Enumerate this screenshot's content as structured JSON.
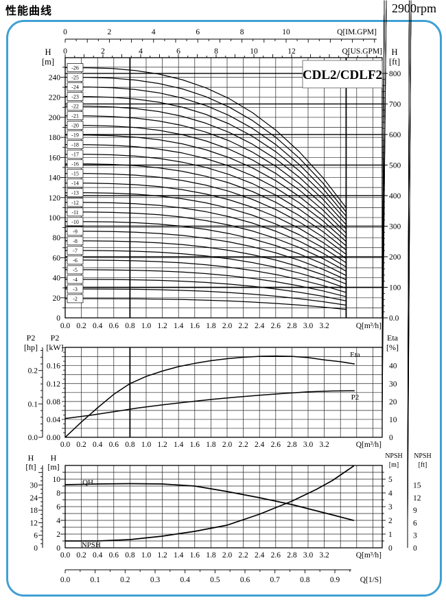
{
  "page": {
    "title": "性能曲线",
    "rpm": "2900rpm",
    "border_color": "#3fa0d4",
    "model": "CDL2/CDLF2"
  },
  "chart_data": [
    {
      "id": "main_qh_multistage",
      "type": "line",
      "title": "CDL2/CDLF2",
      "x_axis": {
        "label": "Q[m³/h]",
        "ticks": [
          "0.0",
          "0.2",
          "0.4",
          "0.6",
          "0.8",
          "1.0",
          "1.2",
          "1.4",
          "1.6",
          "1.8",
          "2.0",
          "2.2",
          "2.4",
          "2.6",
          "2.8",
          "3.0",
          "3.2"
        ]
      },
      "x_axis_im": {
        "label": "Q[IM.GPM]",
        "ticks": [
          0,
          2,
          4,
          6,
          8,
          10
        ]
      },
      "x_axis_us": {
        "label": "Q[US.GPM]",
        "ticks": [
          0,
          2,
          4,
          6,
          8,
          10,
          12
        ]
      },
      "y_left": {
        "label_lines": [
          "H",
          "[m]"
        ],
        "ticks": [
          0,
          20,
          40,
          60,
          80,
          100,
          120,
          140,
          160,
          180,
          200,
          220,
          240
        ],
        "range_m": [
          0,
          260
        ]
      },
      "y_right": {
        "label_lines": [
          "H",
          "[ft]"
        ],
        "ticks": [
          "0.0",
          "100",
          "200",
          "300",
          "400",
          "500",
          "600",
          "700",
          "800"
        ]
      },
      "stages": [
        2,
        3,
        4,
        5,
        6,
        7,
        8,
        9,
        10,
        11,
        12,
        13,
        14,
        15,
        16,
        17,
        18,
        19,
        20,
        21,
        22,
        23,
        24,
        25,
        26
      ],
      "stage_label_prefix": "-",
      "stage_curve": {
        "shutoff_head_per_stage_m": 9.6,
        "q_end_m3h": 3.47,
        "head_frac_at_end": 0.44,
        "exponent": 2.8
      },
      "bold_flow_lines_m3h": [
        0.8,
        3.47
      ]
    },
    {
      "id": "power_and_efficiency",
      "type": "line",
      "x_axis": {
        "label": "Q[m³/h]",
        "ticks": [
          "0.0",
          "0.2",
          "0.4",
          "0.6",
          "0.8",
          "1.0",
          "1.2",
          "1.4",
          "1.6",
          "1.8",
          "2.0",
          "2.2",
          "2.4",
          "2.6",
          "2.8",
          "3.0",
          "3.2"
        ]
      },
      "y_left_kw": {
        "label_lines": [
          "P2",
          "[kW]"
        ],
        "ticks": [
          "0.00",
          "0.04",
          "0.08",
          "0.12",
          "0.16"
        ]
      },
      "y_left_hp": {
        "label_lines": [
          "P2",
          "[hp]"
        ],
        "ticks": [
          "0.0",
          "0.1",
          "0.2"
        ]
      },
      "y_right_eta": {
        "label_lines": [
          "Eta",
          "[%]"
        ],
        "ticks": [
          0,
          10,
          20,
          30,
          40
        ]
      },
      "bold_flow_lines_m3h": [
        0.8
      ],
      "series": [
        {
          "name": "P2",
          "label": "P2",
          "unit": "kW",
          "label_at": [
            3.58,
            0.0905
          ],
          "points": [
            [
              0,
              0.042
            ],
            [
              0.3,
              0.049
            ],
            [
              0.6,
              0.057
            ],
            [
              0.9,
              0.0655
            ],
            [
              1.2,
              0.0725
            ],
            [
              1.5,
              0.0785
            ],
            [
              1.8,
              0.0845
            ],
            [
              2.1,
              0.0895
            ],
            [
              2.4,
              0.094
            ],
            [
              2.7,
              0.098
            ],
            [
              3.0,
              0.1015
            ],
            [
              3.3,
              0.1035
            ],
            [
              3.57,
              0.104
            ]
          ]
        },
        {
          "name": "Eta",
          "label": "Eta",
          "unit": "pct",
          "label_at": [
            3.58,
            46.4
          ],
          "points": [
            [
              0,
              0
            ],
            [
              0.2,
              8.5
            ],
            [
              0.4,
              16.5
            ],
            [
              0.6,
              24
            ],
            [
              0.8,
              30
            ],
            [
              1.0,
              34
            ],
            [
              1.2,
              37
            ],
            [
              1.4,
              39.5
            ],
            [
              1.6,
              41.3
            ],
            [
              1.8,
              42.8
            ],
            [
              2.0,
              43.9
            ],
            [
              2.2,
              44.7
            ],
            [
              2.4,
              45.2
            ],
            [
              2.6,
              45.4
            ],
            [
              2.8,
              45.2
            ],
            [
              3.0,
              44.5
            ],
            [
              3.2,
              43.2
            ],
            [
              3.4,
              42.2
            ],
            [
              3.57,
              41
            ]
          ]
        }
      ]
    },
    {
      "id": "single_stage_qh_npsh",
      "type": "line",
      "x_axis": {
        "label": "Q[m³/h]",
        "ticks": [
          "0.0",
          "0.2",
          "0.4",
          "0.6",
          "0.8",
          "1.0",
          "1.2",
          "1.4",
          "1.6",
          "1.8",
          "2.0",
          "2.2",
          "2.4",
          "2.6",
          "2.8",
          "3.0",
          "3.2"
        ]
      },
      "x_axis_ls": {
        "label": "Q[1/S]",
        "ticks": [
          "0.0",
          "0.1",
          "0.2",
          "0.3",
          "0.4",
          "0.5",
          "0.6",
          "0.7",
          "0.8",
          "0.9"
        ]
      },
      "y_left_m": {
        "label_lines": [
          "H",
          "[m]"
        ],
        "ticks": [
          0,
          2,
          4,
          6,
          8,
          10
        ]
      },
      "y_left_ft": {
        "label_lines": [
          "H",
          "[ft]"
        ],
        "ticks": [
          0,
          6,
          12,
          18,
          24,
          30
        ]
      },
      "y_right_npsh_m": {
        "label_lines": [
          "NPSH",
          "[m]"
        ],
        "ticks": [
          0,
          1,
          2,
          3,
          4,
          5
        ]
      },
      "y_right_npsh_ft": {
        "label_lines": [
          "NPSH",
          "[ft]"
        ],
        "ticks": [
          0,
          3,
          6,
          9,
          12,
          15
        ]
      },
      "series": [
        {
          "name": "QH",
          "label": "QH",
          "unit": "m",
          "label_at": [
            0.28,
            9.6
          ],
          "points": [
            [
              0,
              9.2
            ],
            [
              0.4,
              9.3
            ],
            [
              0.8,
              9.35
            ],
            [
              1.2,
              9.3
            ],
            [
              1.6,
              9.0
            ],
            [
              2.0,
              8.2
            ],
            [
              2.4,
              7.3
            ],
            [
              2.8,
              6.3
            ],
            [
              3.1,
              5.4
            ],
            [
              3.3,
              4.8
            ],
            [
              3.56,
              4.0
            ]
          ]
        },
        {
          "name": "NPSH",
          "label": "NPSH",
          "unit": "npshm",
          "label_at": [
            0.32,
            0.25
          ],
          "points": [
            [
              0,
              0.5
            ],
            [
              0.4,
              0.5
            ],
            [
              0.8,
              0.6
            ],
            [
              1.2,
              0.85
            ],
            [
              1.6,
              1.2
            ],
            [
              2.0,
              1.65
            ],
            [
              2.4,
              2.45
            ],
            [
              2.8,
              3.4
            ],
            [
              3.1,
              4.25
            ],
            [
              3.3,
              4.9
            ],
            [
              3.56,
              5.95
            ]
          ]
        }
      ]
    }
  ]
}
